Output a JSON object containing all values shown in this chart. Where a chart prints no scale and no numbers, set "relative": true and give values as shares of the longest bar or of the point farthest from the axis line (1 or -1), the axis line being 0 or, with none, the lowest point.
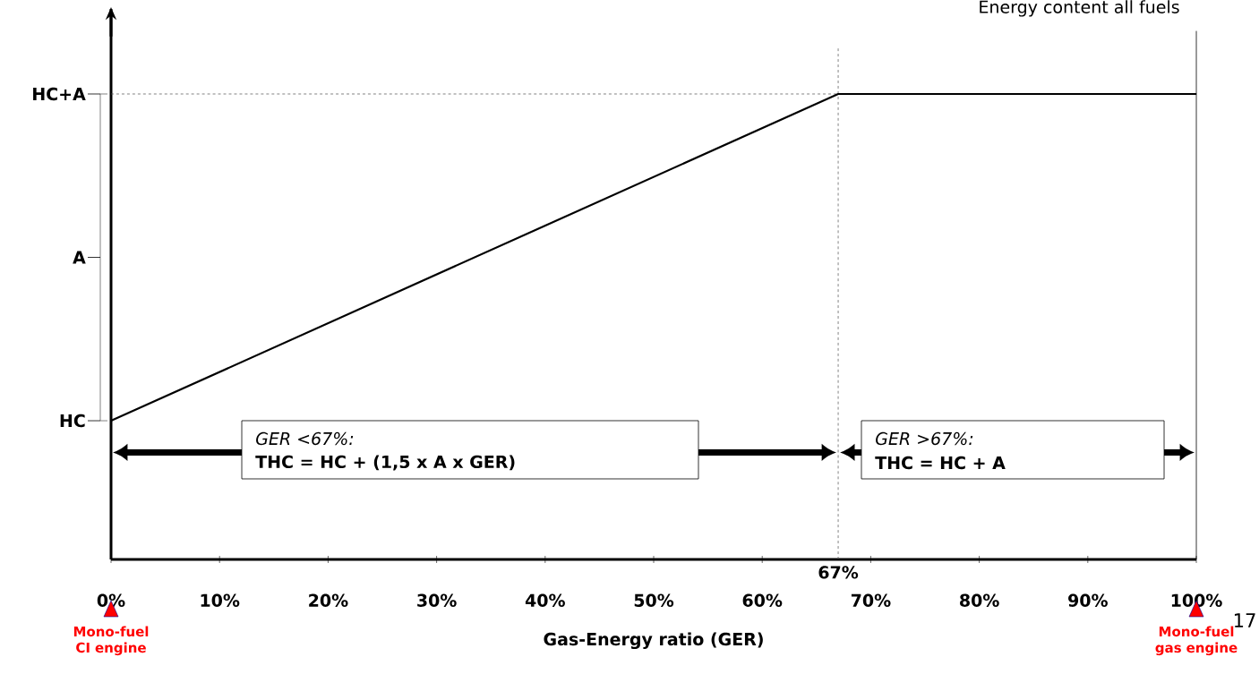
{
  "chart_data": {
    "type": "line",
    "relative": true,
    "xlabel": "Gas-Energy ratio (GER)",
    "x": [
      0,
      67,
      100
    ],
    "series": [
      {
        "color": "#000000",
        "values": [
          0.298,
          1,
          1
        ]
      }
    ],
    "xlim": [
      0,
      100
    ],
    "xticks": [
      {
        "value": 0,
        "label": "0%"
      },
      {
        "value": 10,
        "label": "10%"
      },
      {
        "value": 20,
        "label": "20%"
      },
      {
        "value": 30,
        "label": "30%"
      },
      {
        "value": 40,
        "label": "40%"
      },
      {
        "value": 50,
        "label": "50%"
      },
      {
        "value": 60,
        "label": "60%"
      },
      {
        "value": 70,
        "label": "70%"
      },
      {
        "value": 80,
        "label": "80%"
      },
      {
        "value": 90,
        "label": "90%"
      },
      {
        "value": 100,
        "label": "100%"
      }
    ],
    "ref_lines": [
      {
        "axis": "x",
        "value": 67,
        "label": "67%",
        "line_style": "dashed"
      },
      {
        "axis": "y",
        "value": 1,
        "line_style": "dashed"
      }
    ],
    "annotations": [
      "Energy content all fuels",
      "HC",
      "A",
      "HC+A",
      "GER <67%:",
      "THC = HC + (1,5 x A x GER)",
      "GER >67%:",
      "THC = HC + A",
      "Mono-fuel CI engine",
      "Mono-fuel gas engine",
      "17"
    ]
  }
}
